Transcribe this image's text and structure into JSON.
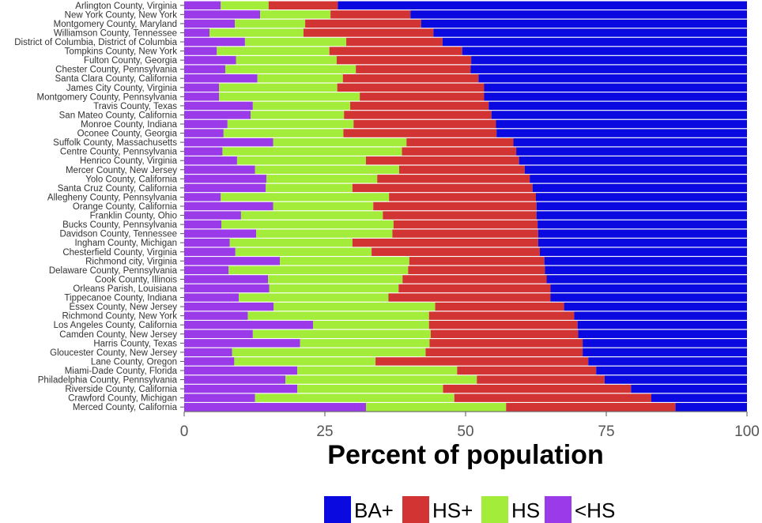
{
  "chart_data": {
    "type": "bar",
    "orientation": "horizontal",
    "stacked": true,
    "xlabel": "Percent of population",
    "ylabel": "",
    "xlim": [
      0,
      100
    ],
    "xticks": [
      "0",
      "25",
      "50",
      "75",
      "100"
    ],
    "grid": false,
    "legend_position": "bottom",
    "categories": [
      "Arlington County, Virginia",
      "New York County, New York",
      "Montgomery County, Maryland",
      "Williamson County, Tennessee",
      "District of Columbia, District of Columbia",
      "Tompkins County, New York",
      "Fulton County, Georgia",
      "Chester County, Pennsylvania",
      "Santa Clara County, California",
      "James City County, Virginia",
      "Montgomery County, Pennsylvania",
      "Travis County, Texas",
      "San Mateo County, California",
      "Monroe County, Indiana",
      "Oconee County, Georgia",
      "Suffolk County, Massachusetts",
      "Centre County, Pennsylvania",
      "Henrico County, Virginia",
      "Mercer County, New Jersey",
      "Yolo County, California",
      "Santa Cruz County, California",
      "Allegheny County, Pennsylvania",
      "Orange County, California",
      "Franklin County, Ohio",
      "Bucks County, Pennsylvania",
      "Davidson County, Tennessee",
      "Ingham County, Michigan",
      "Chesterfield County, Virginia",
      "Richmond city, Virginia",
      "Delaware County, Pennsylvania",
      "Cook County, Illinois",
      "Orleans Parish, Louisiana",
      "Tippecanoe County, Indiana",
      "Essex County, New Jersey",
      "Richmond County, New York",
      "Los Angeles County, California",
      "Camden County, New Jersey",
      "Harris County, Texas",
      "Gloucester County, New Jersey",
      "Lane County, Oregon",
      "Miami-Dade County, Florida",
      "Philadelphia County, Pennsylvania",
      "Riverside County, California",
      "Crawford County, Michigan",
      "Merced County, California"
    ],
    "series": [
      {
        "name": "<HS",
        "color": "#9a3ae8",
        "values": [
          6.5,
          13.5,
          9.0,
          4.5,
          10.8,
          5.8,
          9.2,
          7.3,
          13.0,
          6.2,
          6.2,
          12.2,
          11.8,
          7.7,
          7.0,
          15.8,
          6.8,
          9.4,
          12.6,
          14.6,
          14.5,
          6.5,
          15.8,
          10.1,
          6.6,
          12.8,
          8.1,
          9.1,
          17.0,
          7.9,
          14.9,
          15.1,
          9.7,
          15.9,
          11.3,
          22.9,
          12.2,
          20.6,
          8.5,
          8.9,
          20.1,
          18.0,
          20.1,
          12.6,
          32.3
        ]
      },
      {
        "name": "HS",
        "color": "#a3ec3a",
        "values": [
          8.5,
          12.5,
          12.5,
          16.7,
          18.0,
          20.0,
          17.9,
          23.2,
          15.2,
          21.0,
          25.0,
          17.3,
          16.6,
          22.4,
          21.3,
          23.7,
          31.9,
          22.9,
          25.6,
          19.7,
          15.4,
          29.9,
          17.8,
          25.2,
          30.6,
          24.2,
          21.8,
          24.2,
          23.0,
          31.9,
          23.9,
          23.0,
          26.6,
          28.7,
          32.2,
          20.6,
          31.6,
          23.0,
          34.4,
          25.1,
          28.4,
          34.0,
          25.9,
          35.4,
          24.9
        ]
      },
      {
        "name": "HS+",
        "color": "#d23434",
        "values": [
          12.3,
          14.2,
          20.6,
          23.1,
          17.1,
          23.6,
          23.9,
          20.4,
          24.1,
          26.1,
          22.1,
          24.6,
          26.2,
          25.3,
          27.2,
          19.0,
          20.3,
          27.2,
          22.3,
          27.1,
          32.0,
          26.1,
          29.0,
          27.3,
          25.6,
          25.9,
          33.0,
          29.9,
          24.0,
          24.3,
          25.6,
          27.0,
          28.8,
          22.9,
          25.8,
          26.4,
          26.2,
          27.2,
          27.9,
          37.8,
          24.7,
          22.7,
          33.4,
          35.0,
          30.1
        ]
      },
      {
        "name": "BA+",
        "color": "#0a0ae0",
        "values": [
          72.7,
          59.8,
          57.9,
          55.7,
          54.1,
          50.6,
          49.0,
          49.1,
          47.7,
          46.7,
          46.7,
          45.9,
          45.4,
          44.6,
          44.5,
          41.5,
          41.0,
          40.5,
          39.5,
          38.6,
          38.1,
          37.5,
          37.4,
          37.4,
          37.2,
          37.1,
          37.1,
          36.8,
          36.0,
          35.9,
          35.6,
          34.9,
          34.9,
          32.5,
          30.7,
          30.1,
          30.0,
          29.2,
          29.2,
          28.2,
          26.8,
          25.3,
          20.6,
          17.0,
          12.7
        ]
      }
    ],
    "legend": [
      {
        "label": "BA+",
        "color": "#0a0ae0"
      },
      {
        "label": "HS+",
        "color": "#d23434"
      },
      {
        "label": "HS",
        "color": "#a3ec3a"
      },
      {
        "label": "<HS",
        "color": "#9a3ae8"
      }
    ]
  }
}
